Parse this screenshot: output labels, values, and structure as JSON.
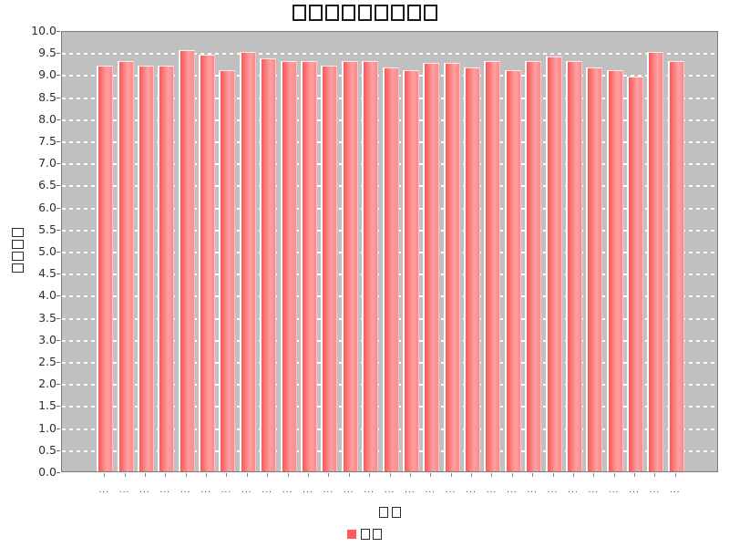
{
  "title": "□□□□□□□□□",
  "chart_data": {
    "type": "bar",
    "title": "□□□□□□□□□",
    "xlabel": "□□",
    "ylabel": "□□□□",
    "legend": {
      "position": "bottom-center",
      "items": [
        {
          "label": "□□",
          "color": "#ff5a5a"
        }
      ]
    },
    "categories": [
      "...",
      "...",
      "...",
      "...",
      "...",
      "...",
      "...",
      "...",
      "...",
      "...",
      "...",
      "...",
      "...",
      "...",
      "...",
      "...",
      "...",
      "...",
      "...",
      "...",
      "...",
      "...",
      "...",
      "...",
      "...",
      "...",
      "...",
      "...",
      "..."
    ],
    "values": [
      9.2,
      9.3,
      9.2,
      9.2,
      9.55,
      9.45,
      9.1,
      9.5,
      9.35,
      9.3,
      9.3,
      9.2,
      9.3,
      9.3,
      9.15,
      9.1,
      9.25,
      9.25,
      9.15,
      9.3,
      9.1,
      9.3,
      9.4,
      9.3,
      9.15,
      9.1,
      8.95,
      9.5,
      9.3
    ],
    "ylim": [
      0.0,
      10.0
    ],
    "y_tick_step": 0.5,
    "y_ticks": [
      "0.0",
      "0.5",
      "1.0",
      "1.5",
      "2.0",
      "2.5",
      "3.0",
      "3.5",
      "4.0",
      "4.5",
      "5.0",
      "5.5",
      "6.0",
      "6.5",
      "7.0",
      "7.5",
      "8.0",
      "8.5",
      "9.0",
      "9.5",
      "10.0"
    ],
    "grid": "horizontal white dashed lines on gray plot background",
    "colors": {
      "plot_background": "#c0c0c0",
      "gridline": "#ffffff",
      "bar_dark": "#f95a5a",
      "bar_light": "#ffa0a0",
      "bar_highlight_stripe": "#ffffff",
      "legend_swatch": "#ff5a5a",
      "axis_text": "#2e2e2e",
      "page_background": "#ffffff"
    }
  }
}
